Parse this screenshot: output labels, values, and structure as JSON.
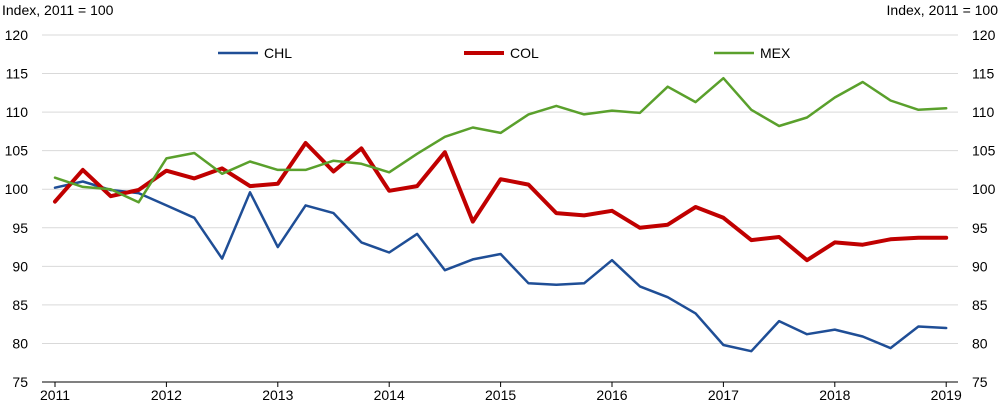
{
  "chart_data": {
    "type": "line",
    "ylabel_left": "Index, 2011 = 100",
    "ylabel_right": "Index, 2011 = 100",
    "ylim": [
      75,
      120
    ],
    "yticks": [
      75,
      80,
      85,
      90,
      95,
      100,
      105,
      110,
      115,
      120
    ],
    "xticks": [
      "2011",
      "2012",
      "2013",
      "2014",
      "2015",
      "2016",
      "2017",
      "2018",
      "2019"
    ],
    "legend_position": "top",
    "grid": true,
    "x": [
      "2011Q1",
      "2011Q2",
      "2011Q3",
      "2011Q4",
      "2012Q1",
      "2012Q2",
      "2012Q3",
      "2012Q4",
      "2013Q1",
      "2013Q2",
      "2013Q3",
      "2013Q4",
      "2014Q1",
      "2014Q2",
      "2014Q3",
      "2014Q4",
      "2015Q1",
      "2015Q2",
      "2015Q3",
      "2015Q4",
      "2016Q1",
      "2016Q2",
      "2016Q3",
      "2016Q4",
      "2017Q1",
      "2017Q2",
      "2017Q3",
      "2017Q4",
      "2018Q1",
      "2018Q2",
      "2018Q3",
      "2018Q4",
      "2019Q1"
    ],
    "series": [
      {
        "name": "CHL",
        "color": "#1f4e96",
        "values": [
          100.2,
          101.0,
          99.9,
          99.5,
          97.9,
          96.3,
          91.0,
          99.6,
          92.5,
          97.9,
          96.9,
          93.1,
          91.8,
          94.2,
          89.5,
          90.9,
          91.6,
          87.8,
          87.6,
          87.8,
          90.8,
          87.4,
          86.0,
          83.9,
          79.8,
          79.0,
          82.9,
          81.2,
          81.8,
          80.9,
          79.4,
          82.2,
          82.0
        ]
      },
      {
        "name": "COL",
        "color": "#c00000",
        "values": [
          98.4,
          102.5,
          99.1,
          99.9,
          102.4,
          101.4,
          102.7,
          100.4,
          100.7,
          106.0,
          102.3,
          105.3,
          99.8,
          100.4,
          104.8,
          95.8,
          101.3,
          100.6,
          96.9,
          96.6,
          97.2,
          95.0,
          95.4,
          97.7,
          96.3,
          93.4,
          93.8,
          90.8,
          93.1,
          92.8,
          93.5,
          93.7,
          93.7
        ]
      },
      {
        "name": "MEX",
        "color": "#5aa02c",
        "values": [
          101.5,
          100.3,
          100.0,
          98.3,
          104.0,
          104.7,
          102.0,
          103.6,
          102.5,
          102.5,
          103.7,
          103.3,
          102.2,
          104.6,
          106.8,
          108.0,
          107.3,
          109.7,
          110.8,
          109.7,
          110.2,
          109.9,
          113.3,
          111.3,
          114.4,
          110.3,
          108.2,
          109.3,
          111.9,
          113.9,
          111.5,
          110.3,
          110.5
        ]
      }
    ]
  }
}
